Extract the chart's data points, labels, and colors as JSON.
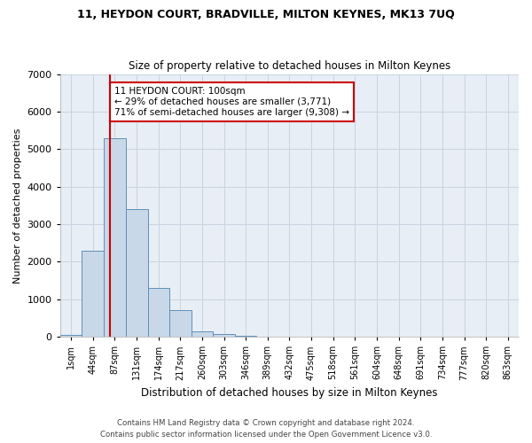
{
  "title1": "11, HEYDON COURT, BRADVILLE, MILTON KEYNES, MK13 7UQ",
  "title2": "Size of property relative to detached houses in Milton Keynes",
  "xlabel": "Distribution of detached houses by size in Milton Keynes",
  "ylabel": "Number of detached properties",
  "footer1": "Contains HM Land Registry data © Crown copyright and database right 2024.",
  "footer2": "Contains public sector information licensed under the Open Government Licence v3.0.",
  "bin_labels": [
    "1sqm",
    "44sqm",
    "87sqm",
    "131sqm",
    "174sqm",
    "217sqm",
    "260sqm",
    "303sqm",
    "346sqm",
    "389sqm",
    "432sqm",
    "475sqm",
    "518sqm",
    "561sqm",
    "604sqm",
    "648sqm",
    "691sqm",
    "734sqm",
    "777sqm",
    "820sqm",
    "863sqm"
  ],
  "bin_edges": [
    1,
    44,
    87,
    131,
    174,
    217,
    260,
    303,
    346,
    389,
    432,
    475,
    518,
    561,
    604,
    648,
    691,
    734,
    777,
    820,
    863,
    906
  ],
  "bar_values": [
    50,
    2300,
    5300,
    3400,
    1300,
    700,
    150,
    80,
    20,
    5,
    2,
    1,
    0,
    0,
    0,
    0,
    0,
    0,
    0,
    0,
    0
  ],
  "bar_color": "#c8d8e8",
  "bar_edgecolor": "#6090b8",
  "grid_color": "#c8d4e0",
  "background_color": "#e8eef5",
  "property_size": 100,
  "redline_color": "#cc0000",
  "annotation_text": "11 HEYDON COURT: 100sqm\n← 29% of detached houses are smaller (3,771)\n71% of semi-detached houses are larger (9,308) →",
  "annotation_box_facecolor": "#ffffff",
  "annotation_box_edgecolor": "#cc0000",
  "ylim": [
    0,
    7000
  ],
  "yticks": [
    0,
    1000,
    2000,
    3000,
    4000,
    5000,
    6000,
    7000
  ],
  "fig_width": 6.0,
  "fig_height": 5.0,
  "dpi": 100
}
